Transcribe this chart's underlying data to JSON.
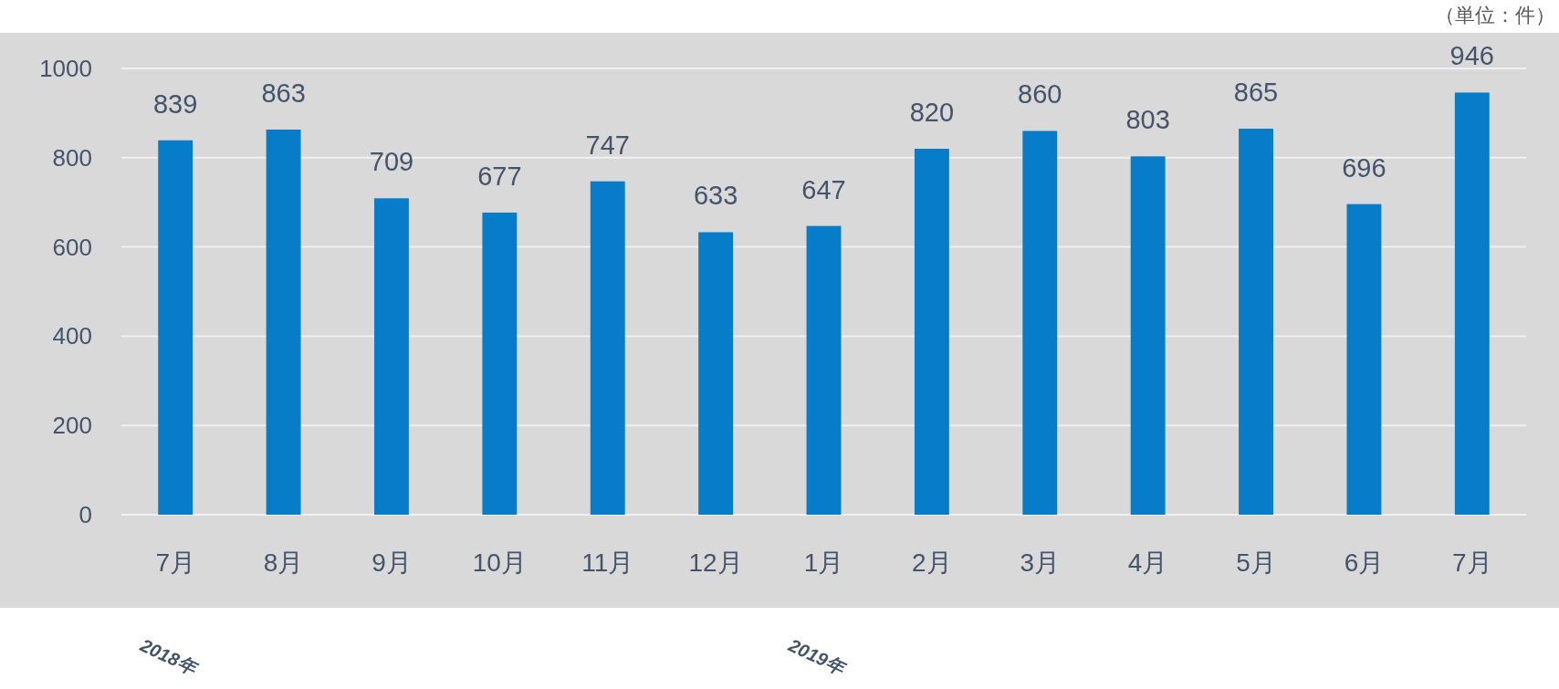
{
  "chart_data": {
    "type": "bar",
    "annotations": [
      "（単位：件）",
      "2018年",
      "2019年"
    ],
    "categories": [
      "7月",
      "8月",
      "9月",
      "10月",
      "11月",
      "12月",
      "1月",
      "2月",
      "3月",
      "4月",
      "5月",
      "6月",
      "7月"
    ],
    "values": [
      839,
      863,
      709,
      677,
      747,
      633,
      647,
      820,
      860,
      803,
      865,
      696,
      946
    ],
    "color": "#077cc9",
    "ylim": [
      0,
      1000
    ],
    "yticks": [
      0,
      200,
      400,
      600,
      800,
      1000
    ],
    "grid": "y",
    "data_labels": true
  }
}
